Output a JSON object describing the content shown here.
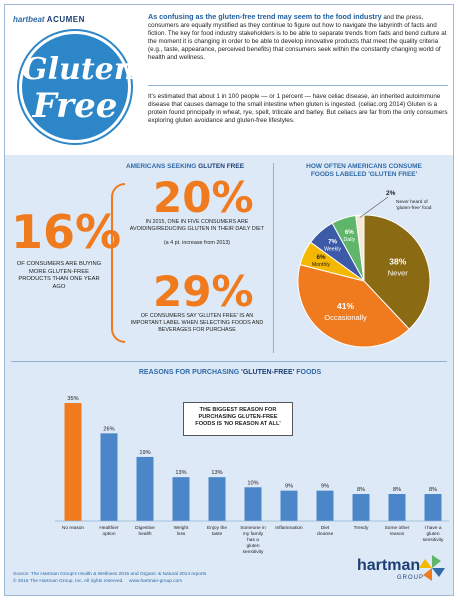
{
  "header": {
    "brand_hartbeat": "hartbeat",
    "brand_acumen": "ACUMEN",
    "logo_line1": "Gluten",
    "logo_line2": "Free",
    "intro_lead": "As confusing as the gluten-free trend may seem to the food industry",
    "intro_body": " and the press, consumers are equally mystified as they continue to figure out how to navigate the labyrinth of facts and fiction. The key for food industry stakeholders is to be able to separate trends from fads and bend culture at the moment it is changing in order to be able to develop innovative products that meet the quality criteria (e.g., taste, appearance, perceived benefits) that consumers seek within the constantly changing world of health and wellness.",
    "intro2": "It's estimated that about 1 in 100 people — or 1 percent — have celiac disease, an inherited autoimmune disease that causes damage to the small intestine when gluten is ingested. (celiac.org 2014) Gluten is a protein found principally in wheat, rye, spelt, triticale and barley. But celiacs are far from the only consumers exploring gluten avoidance and gluten-free lifestyles."
  },
  "americans": {
    "title_prefix": "AMERICANS SEEKING ",
    "title_highlight": "GLUTEN FREE",
    "stat16_value": "16%",
    "stat16_text": "OF CONSUMERS ARE BUYING MORE GLUTEN-FREE PRODUCTS THAN ONE YEAR AGO",
    "stat20_value": "20%",
    "stat20_text": "IN 2015, ONE IN FIVE CONSUMERS ARE AVOIDING/REDUCING GLUTEN IN THEIR DAILY DIET",
    "stat20_note": "(a 4 pt. increase from 2013)",
    "stat29_value": "29%",
    "stat29_text": "OF CONSUMERS SAY 'GLUTEN FREE' IS AN IMPORTANT LABEL WHEN SELECTING FOODS AND BEVERAGES FOR PURCHASE"
  },
  "pie": {
    "title_line1": "HOW OFTEN AMERICANS CONSUME",
    "title_line2": "FOODS LABELED 'GLUTEN FREE'",
    "never_heard_label": "Never heard of 'gluten-free' food"
  },
  "bars_section": {
    "title_prefix": "REASONS FOR PURCHASING ",
    "title_highlight": "'GLUTEN-FREE'",
    "title_suffix": " FOODS",
    "callout": "THE BIGGEST REASON FOR PURCHASING GLUTEN-FREE FOODS IS 'NO REASON AT ALL'"
  },
  "footer": {
    "source_line1": "Source: The Hartman Group's Health & Wellness 2015 and Organic & Natural 2014 reports",
    "source_line2": "© 2015 The Hartman Group, Inc. All rights reserved.",
    "source_url": "www.hartman-group.com",
    "logo_word": "hartman",
    "logo_sub": "GROUP"
  },
  "colors": {
    "orange": "#f07a1e",
    "blue": "#2f6aa8",
    "bar_blue": "#4a86c8",
    "never": "#8a6a12",
    "occasionally": "#f07a1e",
    "monthly": "#f5b800",
    "weekly": "#3c5aa8",
    "daily": "#5fb56a",
    "never_heard": "#f2ead6"
  },
  "chart_data": [
    {
      "type": "pie",
      "title": "HOW OFTEN AMERICANS CONSUME FOODS LABELED 'GLUTEN FREE'",
      "slices": [
        {
          "label": "Never",
          "value": 38
        },
        {
          "label": "Occasionally",
          "value": 41
        },
        {
          "label": "Monthly",
          "value": 6
        },
        {
          "label": "Weekly",
          "value": 7
        },
        {
          "label": "Daily",
          "value": 6
        },
        {
          "label": "Never heard of 'gluten-free' food",
          "value": 2
        }
      ]
    },
    {
      "type": "bar",
      "title": "REASONS FOR PURCHASING 'GLUTEN-FREE' FOODS",
      "categories": [
        "No reason",
        "Healthier option",
        "Digestive health",
        "Weight loss",
        "Enjoy the taste",
        "Someone in my family has a gluten sensitivity",
        "Inflammation",
        "Diet cleanse",
        "Trendy",
        "Some other reason",
        "I have a gluten sensitivity"
      ],
      "values": [
        35,
        26,
        19,
        13,
        13,
        10,
        9,
        9,
        8,
        8,
        8
      ],
      "value_labels": [
        "35%",
        "26%",
        "19%",
        "13%",
        "13%",
        "10%",
        "9%",
        "9%",
        "8%",
        "8%",
        "8%"
      ],
      "ylim": [
        0,
        35
      ]
    }
  ]
}
